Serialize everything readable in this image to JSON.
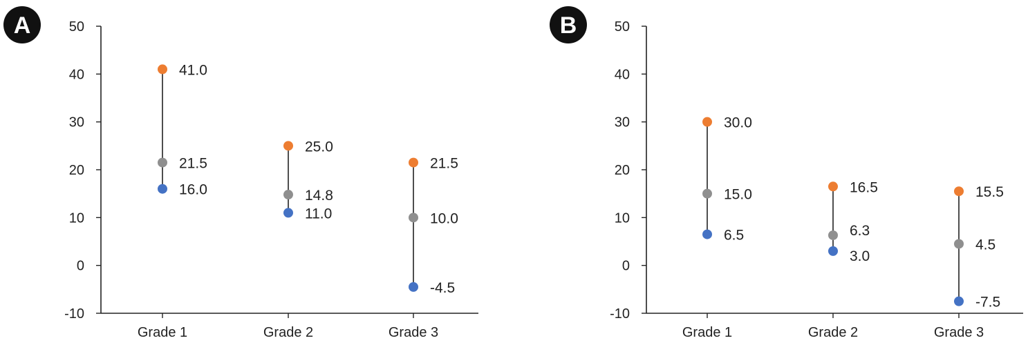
{
  "colors": {
    "high": "#ED7D31",
    "mid": "#8F8F8F",
    "low": "#4472C4",
    "axis": "#222222",
    "whisker": "#222222",
    "badge": "#111111"
  },
  "panels": [
    {
      "label": "A"
    },
    {
      "label": "B"
    }
  ],
  "chart_data": [
    {
      "type": "scatter",
      "panel": "A",
      "categories": [
        "Grade 1",
        "Grade 2",
        "Grade 3"
      ],
      "ylim": [
        -10,
        50
      ],
      "yticks": [
        -10,
        0,
        10,
        20,
        30,
        40,
        50
      ],
      "ytick_labels": [
        "-10",
        "0",
        "10",
        "20",
        "30",
        "40",
        "50"
      ],
      "grid": false,
      "points": [
        {
          "high": 41.0,
          "mid": 21.5,
          "low": 16.0,
          "high_label": "41.0",
          "mid_label": "21.5",
          "low_label": "16.0"
        },
        {
          "high": 25.0,
          "mid": 14.8,
          "low": 11.0,
          "high_label": "25.0",
          "mid_label": "14.8",
          "low_label": "11.0"
        },
        {
          "high": 21.5,
          "mid": 10.0,
          "low": -4.5,
          "high_label": "21.5",
          "mid_label": "10.0",
          "low_label": "-4.5"
        }
      ]
    },
    {
      "type": "scatter",
      "panel": "B",
      "categories": [
        "Grade 1",
        "Grade 2",
        "Grade 3"
      ],
      "ylim": [
        -10,
        50
      ],
      "yticks": [
        -10,
        0,
        10,
        20,
        30,
        40,
        50
      ],
      "ytick_labels": [
        "-10",
        "0",
        "10",
        "20",
        "30",
        "40",
        "50"
      ],
      "grid": false,
      "points": [
        {
          "high": 30.0,
          "mid": 15.0,
          "low": 6.5,
          "high_label": "30.0",
          "mid_label": "15.0",
          "low_label": "6.5"
        },
        {
          "high": 16.5,
          "mid": 6.3,
          "low": 3.0,
          "high_label": "16.5",
          "mid_label": "6.3",
          "low_label": "3.0"
        },
        {
          "high": 15.5,
          "mid": 4.5,
          "low": -7.5,
          "high_label": "15.5",
          "mid_label": "4.5",
          "low_label": "-7.5"
        }
      ]
    }
  ]
}
